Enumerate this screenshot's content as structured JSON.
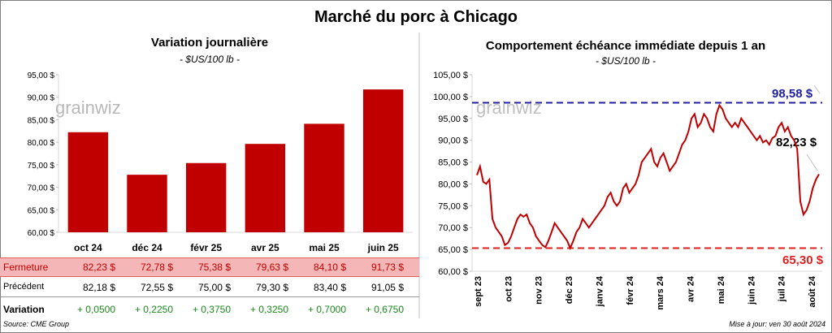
{
  "title": "Marché du porc à Chicago",
  "left": {
    "title": "Variation journalière",
    "subtitle": "- $US/100 lb -",
    "watermark": "grainwiz"
  },
  "right": {
    "title": "Comportement  échéance immédiate depuis 1 an",
    "subtitle": "- $US/100 lb -",
    "watermark": "grainwiz",
    "max_label": "98,58 $",
    "min_label": "65,30 $",
    "last_label": "82,23 $"
  },
  "table": {
    "rows": [
      {
        "label": "Fermeture",
        "values": [
          "82,23  $",
          "72,78  $",
          "75,38  $",
          "79,63  $",
          "84,10  $",
          "91,73  $"
        ]
      },
      {
        "label": "Précédent",
        "values": [
          "82,18  $",
          "72,55  $",
          "75,00  $",
          "79,30  $",
          "83,40  $",
          "91,05  $"
        ]
      },
      {
        "label": "Variation",
        "values": [
          "+ 0,0500",
          "+ 0,2250",
          "+ 0,3750",
          "+ 0,3250",
          "+ 0,7000",
          "+ 0,6750"
        ]
      }
    ]
  },
  "footer": {
    "source": "Source: CME Group",
    "update": "Mise à jour: ven 30 août 2024"
  },
  "colors": {
    "bar": "#c00000",
    "max": "#1f1fa0",
    "min": "#e01f1f",
    "line": "#c00000",
    "green": "#1a8a1a",
    "highlight": "#f4b6b6"
  },
  "chart_data": [
    {
      "type": "bar",
      "categories": [
        "oct 24",
        "déc 24",
        "févr 25",
        "avr 25",
        "mai 25",
        "juin 25"
      ],
      "values": [
        82.23,
        72.78,
        75.38,
        79.63,
        84.1,
        91.73
      ],
      "ylim": [
        60,
        95
      ],
      "yticks": [
        "60,00 $",
        "65,00 $",
        "70,00 $",
        "75,00 $",
        "80,00 $",
        "85,00 $",
        "90,00 $",
        "95,00 $"
      ],
      "grid": false
    },
    {
      "type": "line",
      "x_labels": [
        "sept 23",
        "oct 23",
        "nov 23",
        "déc 23",
        "janv 24",
        "févr 24",
        "mars 24",
        "avr 24",
        "mai 24",
        "juin 24",
        "juil 24",
        "août 24"
      ],
      "ylim": [
        60,
        105
      ],
      "yticks": [
        "60,00 $",
        "65,00 $",
        "70,00 $",
        "75,00 $",
        "80,00 $",
        "85,00 $",
        "90,00 $",
        "95,00 $",
        "100,00 $",
        "105,00 $"
      ],
      "reference_lines": [
        {
          "value": 98.58
        },
        {
          "value": 65.3
        }
      ],
      "last_value": 82.23,
      "series": [
        {
          "values": [
            82,
            84,
            80.5,
            80,
            81,
            72,
            70,
            69,
            68,
            66,
            66.5,
            68,
            70,
            72,
            73,
            72.5,
            73,
            71,
            70,
            68,
            67,
            66,
            65.5,
            67,
            69,
            71,
            70,
            69,
            68,
            67,
            65.3,
            67,
            69,
            70,
            72,
            71,
            70,
            71,
            72,
            73,
            74,
            75,
            77,
            78,
            76,
            75,
            76,
            79,
            80,
            78,
            79,
            80,
            82,
            85,
            86,
            87,
            88,
            85,
            84,
            86,
            87,
            85,
            83,
            84,
            85,
            87,
            89,
            90,
            92,
            95,
            96,
            93,
            94,
            96,
            95,
            93,
            92,
            96,
            98,
            97,
            95,
            94,
            93,
            94,
            93,
            95,
            94,
            93,
            92,
            91,
            90,
            91,
            89.5,
            90,
            89,
            90.5,
            91,
            93,
            94,
            92,
            93,
            91,
            90,
            88,
            76,
            73,
            74,
            76,
            79,
            81,
            82.23
          ]
        }
      ]
    }
  ]
}
